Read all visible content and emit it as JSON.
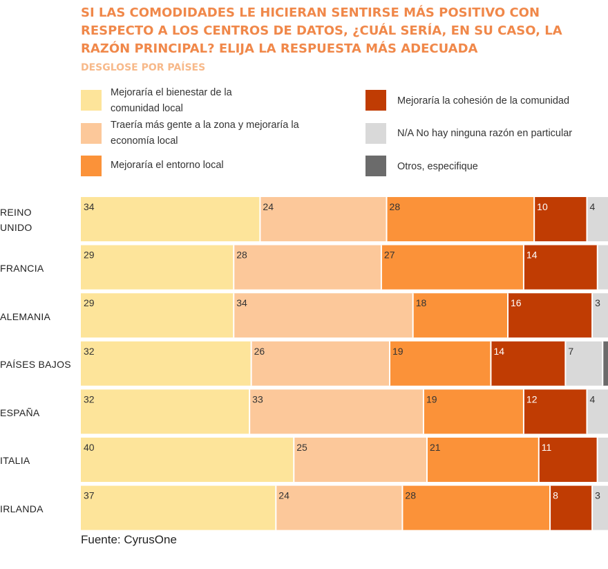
{
  "title": "SI LAS COMODIDADES LE HICIERAN SENTIRSE MÁS POSITIVO CON RESPECTO A LOS CENTROS DE DATOS, ¿CUÁL SERÍA, EN SU CASO, LA RAZÓN PRINCIPAL? ELIJA LA RESPUESTA MÁS ADECUADA",
  "subtitle": "DESGLOSE POR PAÍSES",
  "source": "Fuente: CyrusOne",
  "legend": [
    {
      "label": "Mejoraría el bienestar de la comunidad local",
      "color": "#fde49a"
    },
    {
      "label": "Traería más gente a la zona y mejoraría la economía local",
      "color": "#fcc89a"
    },
    {
      "label": "Mejoraría el entorno local",
      "color": "#fb9239"
    },
    {
      "label": "Mejoraría la cohesión de la comunidad",
      "color": "#c03c03"
    },
    {
      "label": "N/A No hay ninguna razón en particular",
      "color": "#d9d9d9"
    },
    {
      "label": "Otros, especifique",
      "color": "#6b6b6b"
    }
  ],
  "chart_data": {
    "type": "bar",
    "stacked": true,
    "orientation": "horizontal",
    "title": "SI LAS COMODIDADES LE HICIERAN SENTIRSE MÁS POSITIVO CON RESPECTO A LOS CENTROS DE DATOS, ¿CUÁL SERÍA, EN SU CASO, LA RAZÓN PRINCIPAL? ELIJA LA RESPUESTA MÁS ADECUADA",
    "subtitle": "DESGLOSE POR PAÍSES",
    "categories": [
      "REINO UNIDO",
      "FRANCIA",
      "ALEMANIA",
      "PAÍSES BAJOS",
      "ESPAÑA",
      "ITALIA",
      "IRLANDA"
    ],
    "series": [
      {
        "name": "Mejoraría el bienestar de la comunidad local",
        "color": "#fde49a",
        "values": [
          34,
          29,
          29,
          32,
          32,
          40,
          37
        ]
      },
      {
        "name": "Traería más gente a la zona y mejoraría la economía local",
        "color": "#fcc89a",
        "values": [
          24,
          28,
          34,
          26,
          33,
          25,
          24
        ]
      },
      {
        "name": "Mejoraría el entorno local",
        "color": "#fb9239",
        "values": [
          28,
          27,
          18,
          19,
          19,
          21,
          28
        ]
      },
      {
        "name": "Mejoraría la cohesión de la comunidad",
        "color": "#c03c03",
        "values": [
          10,
          14,
          16,
          14,
          12,
          11,
          8
        ]
      },
      {
        "name": "N/A No hay ninguna razón en particular",
        "color": "#d9d9d9",
        "values": [
          4,
          2,
          3,
          7,
          4,
          2,
          3
        ]
      },
      {
        "name": "Otros, especifique",
        "color": "#6b6b6b",
        "values": [
          0,
          0,
          0,
          1,
          0,
          0,
          0
        ]
      }
    ],
    "data_labels": [
      [
        "34",
        "24",
        "28",
        "10",
        "4",
        ""
      ],
      [
        "29",
        "28",
        "27",
        "14",
        "",
        ""
      ],
      [
        "29",
        "34",
        "18",
        "16",
        "3",
        ""
      ],
      [
        "32",
        "26",
        "19",
        "14",
        "7",
        ""
      ],
      [
        "32",
        "33",
        "19",
        "12",
        "4",
        ""
      ],
      [
        "40",
        "25",
        "21",
        "11",
        "",
        ""
      ],
      [
        "37",
        "24",
        "28",
        "8",
        "3",
        ""
      ]
    ],
    "label_colors": [
      "#333333",
      "#333333",
      "#333333",
      "#ffffff",
      "#333333",
      "#ffffff"
    ],
    "legend_position": "top",
    "grid": false,
    "axis_visible": false
  }
}
